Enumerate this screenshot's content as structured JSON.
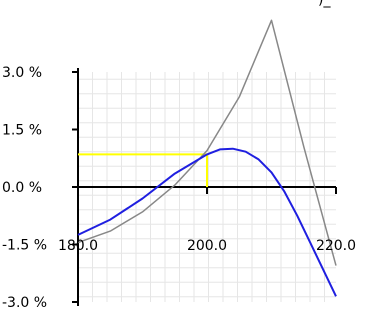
{
  "chart_data": {
    "type": "line",
    "x_range": [
      180,
      220
    ],
    "y_range": [
      -3.0,
      3.0
    ],
    "grid": true,
    "y_tick_labels": [
      "3.0 %",
      "1.5 %",
      "0.0 %",
      "-1.5 %",
      "-3.0 %"
    ],
    "y_tick_values": [
      3.0,
      1.5,
      0.0,
      -1.5,
      -3.0
    ],
    "x_tick_labels": [
      "180.0",
      "200.0",
      "220.0"
    ],
    "x_tick_values": [
      180,
      200,
      220
    ],
    "top_clipped_text": ")_",
    "series": [
      {
        "color": "#888888",
        "x": [
          180,
          185,
          190,
          195,
          200,
          205,
          210,
          215,
          220
        ],
        "y": [
          -1.45,
          -1.15,
          -0.65,
          0.05,
          0.95,
          2.35,
          4.35,
          1.05,
          -2.05
        ]
      },
      {
        "color": "#1f1fe0",
        "x": [
          180,
          185,
          190,
          195,
          200,
          202,
          204,
          206,
          208,
          210,
          212,
          214,
          216,
          218,
          220
        ],
        "y": [
          -1.25,
          -0.85,
          -0.3,
          0.35,
          0.85,
          0.98,
          1.0,
          0.92,
          0.72,
          0.38,
          -0.12,
          -0.75,
          -1.45,
          -2.15,
          -2.85
        ]
      }
    ],
    "highlight": {
      "color": "#ffff00",
      "x": 200,
      "y": 0.85
    }
  }
}
